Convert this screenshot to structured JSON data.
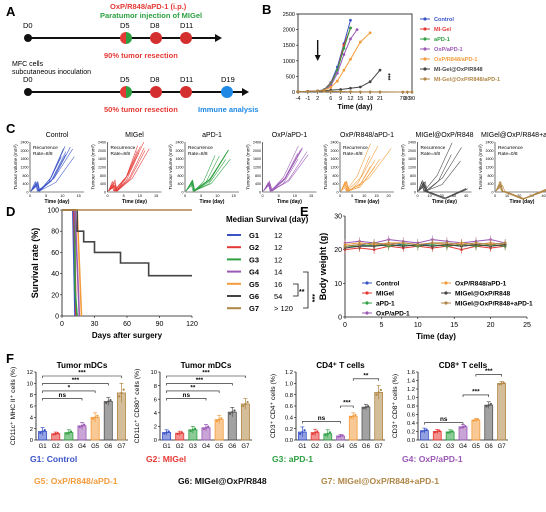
{
  "panels": {
    "A": "A",
    "B": "B",
    "C": "C",
    "D": "D",
    "E": "E",
    "F": "F"
  },
  "colors": {
    "red": "#e53935",
    "green": "#2ea043",
    "black": "#111111",
    "blue": "#2563c9",
    "cyan": "#1e88e5",
    "control": "#3a54c8",
    "migel": "#e53935",
    "apd1": "#2ea043",
    "oxapd1": "#9b59b6",
    "oxr848": "#f39c3c",
    "migel_ox": "#444444",
    "migel_ox_apd1": "#b08646"
  },
  "schematic": {
    "top_title": "OxP/R848/aPD-1 (i.p.)",
    "top_subtitle": "Paratumor injection of MIGel",
    "top_days": [
      "D0",
      "D5",
      "D8",
      "D11"
    ],
    "top_note": "90% tumor resection",
    "left_text_1": "MFC cells",
    "left_text_2": "subcutaneous inoculation",
    "bottom_days": [
      "D0",
      "D5",
      "D8",
      "D11",
      "D19"
    ],
    "bottom_note": "50% tumor resection",
    "immune": "Immune analysis"
  },
  "chart_data": [
    {
      "panel": "B",
      "type": "line",
      "xlabel": "Time (day)",
      "xticks": [
        "-4",
        "-1",
        "2",
        "6",
        "9",
        "12",
        "15",
        "18",
        "21",
        "70",
        "80",
        "90"
      ],
      "yticks": [
        "0",
        "500",
        "1000",
        "1500",
        "2000",
        "2500"
      ],
      "ylim": [
        0,
        2500
      ],
      "legend": [
        "Control",
        "MI-Gel",
        "aPD-1",
        "OxP/aPD-1",
        "OxP/R848/aPD-1",
        "MI-Gel@OxP/R848",
        "MI-Gel@OxP/R848/aPD-1"
      ],
      "significance": "***",
      "series": [
        {
          "name": "Control",
          "x": [
            -4,
            -1,
            2,
            4,
            6,
            8,
            10,
            12
          ],
          "y": [
            10,
            20,
            30,
            80,
            300,
            800,
            1550,
            2300
          ]
        },
        {
          "name": "MI-Gel",
          "x": [
            -4,
            -1,
            2,
            4,
            6,
            8,
            10,
            12
          ],
          "y": [
            10,
            20,
            30,
            70,
            280,
            700,
            1500,
            2050
          ]
        },
        {
          "name": "aPD-1",
          "x": [
            -4,
            -1,
            2,
            4,
            6,
            8,
            10,
            12
          ],
          "y": [
            10,
            20,
            30,
            70,
            250,
            700,
            1400,
            2050
          ]
        },
        {
          "name": "OxP/aPD-1",
          "x": [
            -4,
            -1,
            2,
            4,
            6,
            8,
            10,
            12,
            14
          ],
          "y": [
            10,
            20,
            30,
            60,
            200,
            600,
            1200,
            1700,
            2000
          ]
        },
        {
          "name": "OxP/R848/aPD-1",
          "x": [
            -4,
            -1,
            2,
            4,
            6,
            8,
            10,
            12,
            15,
            18
          ],
          "y": [
            10,
            20,
            30,
            60,
            150,
            350,
            700,
            1050,
            1600,
            1900
          ]
        },
        {
          "name": "MI-Gel@OxP/R848",
          "x": [
            -4,
            -1,
            2,
            4,
            6,
            9,
            12,
            15,
            18,
            21
          ],
          "y": [
            10,
            20,
            30,
            40,
            60,
            80,
            120,
            160,
            330,
            700
          ]
        },
        {
          "name": "MI-Gel@OxP/R848/aPD-1",
          "x": [
            -4,
            -1,
            2,
            4,
            6,
            9,
            12,
            15,
            18,
            21,
            70,
            80,
            90
          ],
          "y": [
            10,
            20,
            30,
            30,
            20,
            15,
            10,
            5,
            5,
            5,
            0,
            0,
            0
          ]
        }
      ]
    },
    {
      "panel": "C",
      "type": "line",
      "ylabel": "Tumour volume (mm³)",
      "xlabel": "Time (day)",
      "yticks": [
        "0",
        "400",
        "800",
        "1200",
        "1600",
        "2000",
        "2400"
      ],
      "subplots": [
        {
          "title": "Control",
          "rate": "Recurrence Rate=8/8",
          "xticks": [
            "0",
            "5",
            "10",
            "15"
          ]
        },
        {
          "title": "MIGel",
          "rate": "Recurrence Rate=8/8",
          "xticks": [
            "0",
            "5",
            "10",
            "15"
          ]
        },
        {
          "title": "aPD-1",
          "rate": "Recurrence Rate=8/8",
          "xticks": [
            "0",
            "5",
            "10",
            "15"
          ]
        },
        {
          "title": "OxP/aPD-1",
          "rate": "",
          "xticks": [
            "0",
            "5",
            "10",
            "15"
          ]
        },
        {
          "title": "OxP/R848/aPD-1",
          "rate": "Recurrence Rate=8/8",
          "xticks": [
            "0",
            "5",
            "10",
            "15",
            "20"
          ]
        },
        {
          "title": "MIGel@OxP/R848",
          "rate": "Recurrence Rate=4/8",
          "xticks": [
            "0",
            "10",
            "20",
            "30",
            "40"
          ]
        },
        {
          "title": "MIGel@OxP/R848+aPD-1",
          "rate": "Recurrence Rate=0/8",
          "xticks": [
            "0",
            "10",
            "20",
            "30",
            "40"
          ]
        }
      ]
    },
    {
      "panel": "D",
      "type": "line",
      "ylabel": "Survival rate (%)",
      "xlabel": "Days after surgery",
      "xticks": [
        "0",
        "30",
        "60",
        "90",
        "120"
      ],
      "yticks": [
        "0",
        "20",
        "40",
        "60",
        "80",
        "100"
      ],
      "legend_title": "Median Survival (day)",
      "groups": [
        {
          "name": "G1",
          "median": "12"
        },
        {
          "name": "G2",
          "median": "12"
        },
        {
          "name": "G3",
          "median": "12"
        },
        {
          "name": "G4",
          "median": "14"
        },
        {
          "name": "G5",
          "median": "16"
        },
        {
          "name": "G6",
          "median": "54"
        },
        {
          "name": "G7",
          "median": "> 120"
        }
      ],
      "sig1": "**",
      "sig2": "***",
      "series": [
        {
          "name": "G1",
          "x": [
            0,
            10,
            12,
            12
          ],
          "y": [
            100,
            100,
            0,
            0
          ]
        },
        {
          "name": "G2",
          "x": [
            0,
            11,
            12,
            13
          ],
          "y": [
            100,
            100,
            50,
            0
          ]
        },
        {
          "name": "G3",
          "x": [
            0,
            12,
            12,
            14
          ],
          "y": [
            100,
            100,
            25,
            0
          ]
        },
        {
          "name": "G4",
          "x": [
            0,
            12,
            14,
            16
          ],
          "y": [
            100,
            100,
            50,
            0
          ]
        },
        {
          "name": "G5",
          "x": [
            0,
            14,
            16,
            18
          ],
          "y": [
            100,
            100,
            50,
            0
          ]
        },
        {
          "name": "G6",
          "x": [
            0,
            14,
            14,
            20,
            20,
            30,
            30,
            54,
            54,
            80,
            80,
            120
          ],
          "y": [
            100,
            100,
            80,
            80,
            70,
            70,
            60,
            60,
            50,
            50,
            38,
            38
          ]
        },
        {
          "name": "G7",
          "x": [
            0,
            120
          ],
          "y": [
            100,
            100
          ]
        }
      ]
    },
    {
      "panel": "E",
      "type": "line",
      "ylabel": "Body weight (g)",
      "xlabel": "Time (day)",
      "xticks": [
        "0",
        "5",
        "10",
        "15",
        "20",
        "25"
      ],
      "yticks": [
        "0",
        "10",
        "20",
        "30"
      ],
      "ylim": [
        0,
        30
      ],
      "legend": [
        "Control",
        "MIGel",
        "aPD-1",
        "OxP/aPD-1",
        "OxP/R848/aPD-1",
        "MIGel@OxP/R848",
        "MIGel@OxP/R848+aPD-1"
      ],
      "series": [
        {
          "name": "Control",
          "x": [
            0,
            2,
            4,
            6,
            8,
            10,
            12,
            14,
            16,
            18,
            20,
            22
          ],
          "y": [
            21,
            21.5,
            21,
            22,
            21.5,
            21,
            22,
            21.5,
            21,
            21.5,
            22,
            21.5
          ]
        },
        {
          "name": "MIGel",
          "x": [
            0,
            2,
            4,
            6,
            8,
            10,
            12,
            14,
            16,
            18,
            20,
            22
          ],
          "y": [
            20,
            20.5,
            20,
            21,
            20.5,
            21,
            20.5,
            21,
            20,
            21,
            20.5,
            21
          ]
        },
        {
          "name": "aPD-1",
          "x": [
            0,
            2,
            4,
            6,
            8,
            10,
            12,
            14,
            16,
            18,
            20,
            22
          ],
          "y": [
            21,
            21,
            21.5,
            21,
            21.5,
            21,
            21.5,
            21,
            21.5,
            21,
            21.5,
            21
          ]
        },
        {
          "name": "OxP/aPD-1",
          "x": [
            0,
            2,
            4,
            6,
            8,
            10,
            12,
            14,
            16,
            18,
            20,
            22
          ],
          "y": [
            22,
            22.5,
            22,
            23,
            22.5,
            22,
            23,
            22.5,
            22,
            22.5,
            23,
            22
          ]
        },
        {
          "name": "OxP/R848/aPD-1",
          "x": [
            0,
            2,
            4,
            6,
            8,
            10,
            12,
            14,
            16,
            18,
            20,
            22
          ],
          "y": [
            21.5,
            22,
            21.5,
            22,
            22,
            21.5,
            22,
            21.5,
            22,
            21.5,
            22,
            21.5
          ]
        },
        {
          "name": "MIGel@OxP/R848",
          "x": [
            0,
            2,
            4,
            6,
            8,
            10,
            12,
            14,
            16,
            18,
            20,
            22
          ],
          "y": [
            20.5,
            21,
            21,
            21.5,
            21,
            21.5,
            21,
            21.5,
            21,
            21.5,
            21,
            21.5
          ]
        },
        {
          "name": "MIGel@OxP/R848+aPD-1",
          "x": [
            0,
            2,
            4,
            6,
            8,
            10,
            12,
            14,
            16,
            18,
            20,
            22
          ],
          "y": [
            21,
            21.5,
            22,
            21.5,
            22,
            21.5,
            22,
            22,
            21.5,
            22,
            21.5,
            22
          ]
        }
      ]
    },
    {
      "panel": "F",
      "type": "bar",
      "categories": [
        "G1",
        "G2",
        "G3",
        "G4",
        "G5",
        "G6",
        "G7"
      ],
      "plots": [
        {
          "title": "Tumor mDCs",
          "ylabel": "CD11c⁺ MHC II⁺ cells (%)",
          "yticks": [
            "0",
            "2",
            "4",
            "6",
            "8",
            "10",
            "12"
          ],
          "ylim": [
            0,
            12
          ],
          "values": [
            1.5,
            1.1,
            1.3,
            2.5,
            4.0,
            6.8,
            8.3
          ],
          "errors": [
            0.7,
            0.3,
            0.5,
            0.6,
            0.8,
            0.7,
            1.7
          ],
          "sigs": [
            {
              "a": 0,
              "b": 3,
              "t": "ns"
            },
            {
              "a": 0,
              "b": 4,
              "t": "*"
            },
            {
              "a": 0,
              "b": 5,
              "t": "***"
            },
            {
              "a": 0,
              "b": 6,
              "t": "***"
            }
          ]
        },
        {
          "title": "Tumor mDCs",
          "ylabel": "CD11c⁺ CD80⁺ cells (%)",
          "yticks": [
            "0",
            "2",
            "4",
            "6",
            "8",
            "10"
          ],
          "ylim": [
            0,
            10
          ],
          "values": [
            1.1,
            1.0,
            1.5,
            1.8,
            3.0,
            4.1,
            5.3
          ],
          "errors": [
            0.4,
            0.3,
            0.5,
            0.5,
            0.6,
            0.7,
            0.8
          ],
          "sigs": [
            {
              "a": 0,
              "b": 3,
              "t": "ns"
            },
            {
              "a": 0,
              "b": 4,
              "t": "**"
            },
            {
              "a": 0,
              "b": 5,
              "t": "***"
            },
            {
              "a": 0,
              "b": 6,
              "t": "***"
            }
          ]
        },
        {
          "title": "CD4⁺ T cells",
          "ylabel": "CD3⁺ CD4⁺ cells (%)",
          "yticks": [
            "0.0",
            "0.2",
            "0.4",
            "0.6",
            "0.8",
            "1.0",
            "1.2"
          ],
          "ylim": [
            0,
            1.2
          ],
          "values": [
            0.14,
            0.13,
            0.11,
            0.07,
            0.42,
            0.58,
            0.84
          ],
          "errors": [
            0.09,
            0.06,
            0.07,
            0.03,
            0.06,
            0.05,
            0.12
          ],
          "sigs": [
            {
              "a": 0,
              "b": 3,
              "t": "ns"
            },
            {
              "a": 3,
              "b": 4,
              "t": "***"
            },
            {
              "a": 4,
              "b": 6,
              "t": "**"
            }
          ]
        },
        {
          "title": "CD8⁺ T cells",
          "ylabel": "CD3⁺ CD8⁺ cells (%)",
          "yticks": [
            "0.0",
            "0.2",
            "0.4",
            "0.6",
            "0.8",
            "1.0",
            "1.2",
            "1.4",
            "1.6"
          ],
          "ylim": [
            0,
            1.6
          ],
          "values": [
            0.22,
            0.2,
            0.19,
            0.31,
            0.47,
            0.82,
            1.33
          ],
          "errors": [
            0.06,
            0.05,
            0.05,
            0.05,
            0.04,
            0.08,
            0.05
          ],
          "sigs": [
            {
              "a": 0,
              "b": 3,
              "t": "ns"
            },
            {
              "a": 3,
              "b": 5,
              "t": "***"
            },
            {
              "a": 4,
              "b": 6,
              "t": "***"
            }
          ]
        }
      ],
      "legend": [
        {
          "key": "G1",
          "label": "G1: Control"
        },
        {
          "key": "G2",
          "label": "G2: MIGel"
        },
        {
          "key": "G3",
          "label": "G3: aPD-1"
        },
        {
          "key": "G4",
          "label": "G4: OxP/aPD-1"
        },
        {
          "key": "G5",
          "label": "G5: OxP/R848/aPD-1"
        },
        {
          "key": "G6",
          "label": "G6: MIGel@OxP/R848"
        },
        {
          "key": "G7",
          "label": "G7: MIGel@OxP/R848+aPD-1"
        }
      ]
    }
  ]
}
